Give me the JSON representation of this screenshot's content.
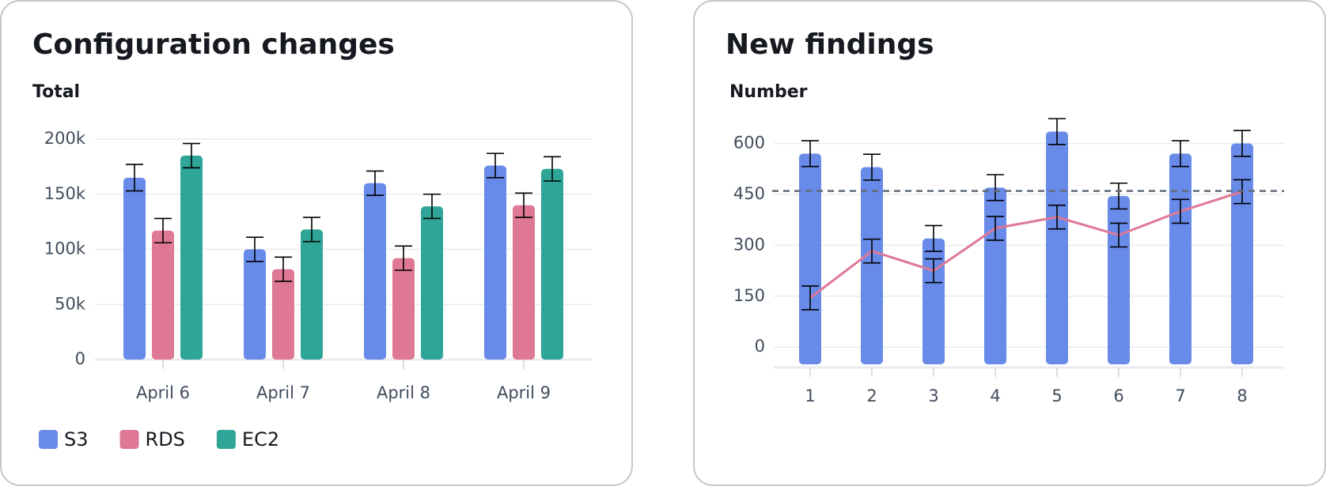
{
  "chart_data": [
    {
      "type": "bar",
      "title": "Configuration changes",
      "y_label": "Total",
      "categories": [
        "April 6",
        "April 7",
        "April 8",
        "April 9"
      ],
      "series": [
        {
          "name": "S3",
          "color": "#688ae8",
          "values": [
            165000,
            100000,
            160000,
            176000
          ],
          "errors": [
            12000,
            11000,
            11000,
            11000
          ]
        },
        {
          "name": "RDS",
          "color": "#de7895",
          "values": [
            117000,
            82000,
            92000,
            140000
          ],
          "errors": [
            11000,
            11000,
            11000,
            11000
          ]
        },
        {
          "name": "EC2",
          "color": "#2ea597",
          "values": [
            185000,
            118000,
            139000,
            173000
          ],
          "errors": [
            11000,
            11000,
            11000,
            11000
          ]
        }
      ],
      "ylim": [
        0,
        200000
      ],
      "yticks": [
        0,
        {
          "value": 50000,
          "label": "50k"
        },
        {
          "value": 100000,
          "label": "100k"
        },
        {
          "value": 150000,
          "label": "150k"
        },
        {
          "value": 200000,
          "label": "200k"
        }
      ],
      "grid": true,
      "legend": "bottom"
    },
    {
      "type": "combo",
      "title": "New findings",
      "y_label": "Number",
      "categories": [
        "1",
        "2",
        "3",
        "4",
        "5",
        "6",
        "7",
        "8"
      ],
      "series": [
        {
          "kind": "bar",
          "color": "#688ae8",
          "values": [
            570,
            530,
            320,
            470,
            635,
            445,
            570,
            600
          ],
          "errors": [
            38,
            38,
            38,
            38,
            38,
            38,
            38,
            38
          ]
        },
        {
          "kind": "line",
          "color": "#de7895",
          "values": [
            145,
            283,
            225,
            350,
            383,
            330,
            400,
            458
          ],
          "errors": [
            35,
            35,
            35,
            35,
            35,
            35,
            35,
            35
          ]
        }
      ],
      "threshold": 460,
      "ylim": [
        -60,
        650
      ],
      "yticks": [
        0,
        150,
        300,
        450,
        600
      ],
      "grid": true
    }
  ]
}
